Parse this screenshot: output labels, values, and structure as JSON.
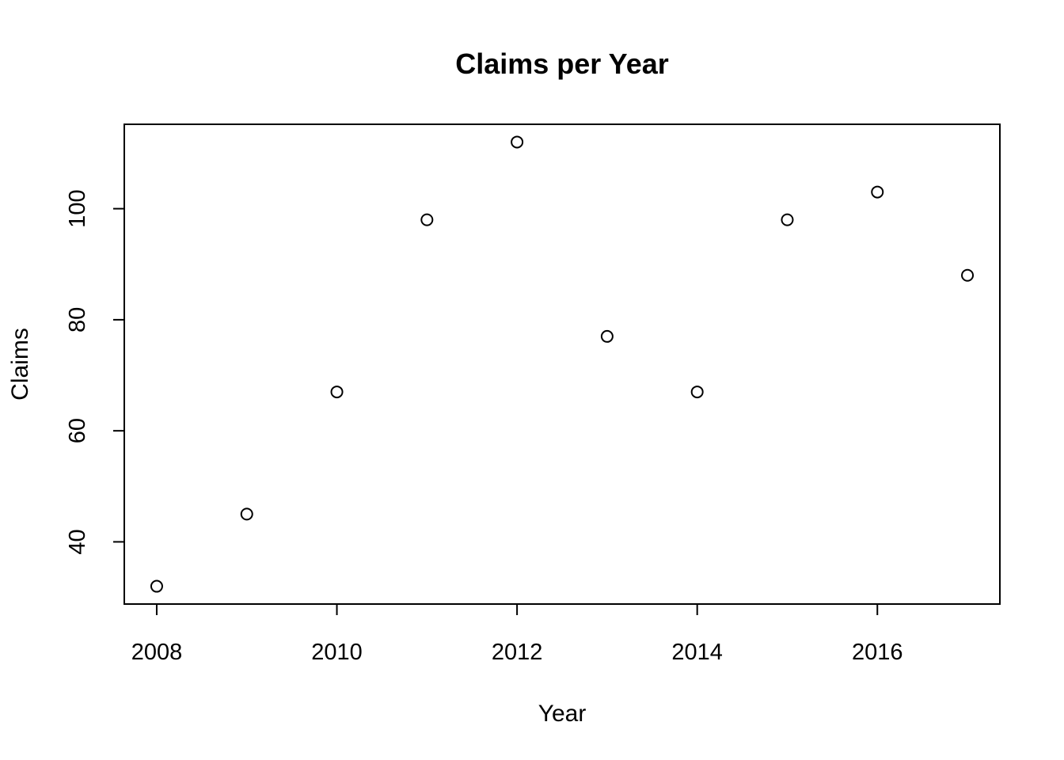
{
  "chart_data": {
    "type": "scatter",
    "title": "Claims per Year",
    "xlabel": "Year",
    "ylabel": "Claims",
    "x": [
      2008,
      2009,
      2010,
      2011,
      2012,
      2013,
      2014,
      2015,
      2016,
      2017
    ],
    "y": [
      32,
      45,
      67,
      98,
      112,
      77,
      67,
      98,
      103,
      88
    ],
    "xlim": [
      2007.64,
      2017.36
    ],
    "ylim": [
      28.8,
      115.2
    ],
    "xticks": [
      2008,
      2010,
      2012,
      2014,
      2016
    ],
    "yticks": [
      40,
      60,
      80,
      100
    ],
    "xtick_labels": [
      "2008",
      "2010",
      "2012",
      "2014",
      "2016"
    ],
    "ytick_labels": [
      "40",
      "60",
      "80",
      "100"
    ],
    "marker": "open-circle",
    "color": "#000000",
    "grid": false,
    "legend": "none"
  }
}
